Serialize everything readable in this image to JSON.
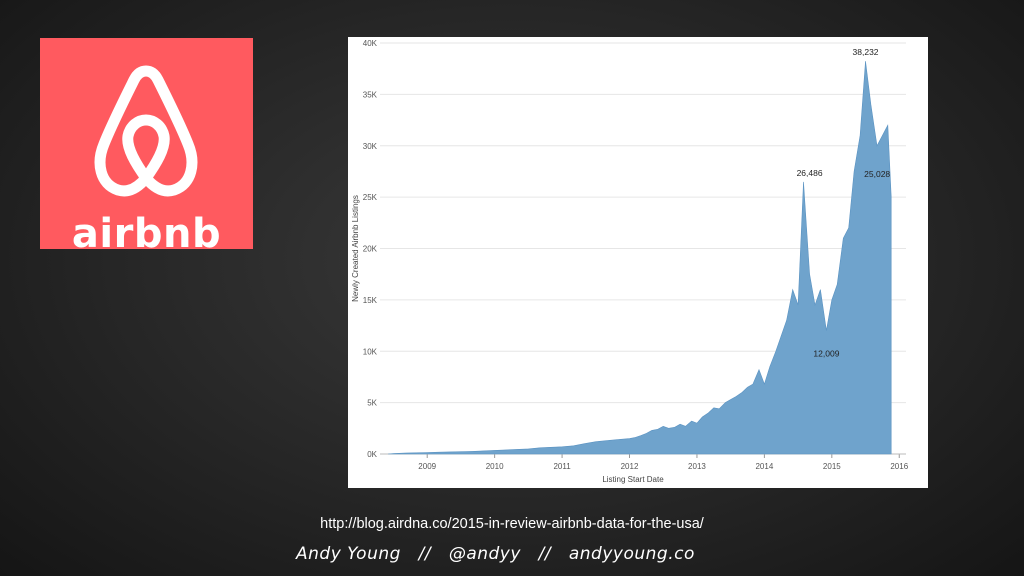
{
  "logo": {
    "brand_text": "airbnb",
    "brand_color": "#ff5a5f"
  },
  "source_url": "http://blog.airdna.co/2015-in-review-airbnb-data-for-the-usa/",
  "credit": {
    "name": "Andy Young",
    "separator": "//",
    "handle": "@andyy",
    "site": "andyyoung.co"
  },
  "chart_data": {
    "type": "area",
    "xlabel": "Listing Start Date",
    "ylabel": "Newly Created Airbnb Listings",
    "xlim": [
      2008.3,
      2016.1
    ],
    "ylim": [
      0,
      40000
    ],
    "x_ticks": [
      2009,
      2010,
      2011,
      2012,
      2013,
      2014,
      2015,
      2016
    ],
    "x_tick_labels": [
      "2009",
      "2010",
      "2011",
      "2012",
      "2013",
      "2014",
      "2015",
      "2016"
    ],
    "y_ticks": [
      0,
      5000,
      10000,
      15000,
      20000,
      25000,
      30000,
      35000,
      40000
    ],
    "y_tick_labels": [
      "0K",
      "5K",
      "10K",
      "15K",
      "20K",
      "25K",
      "30K",
      "35K",
      "40K"
    ],
    "grid": true,
    "fill_color": "#6fa3cc",
    "annotations": [
      {
        "x": 2014.67,
        "y": 26486,
        "label": "26,486"
      },
      {
        "x": 2014.92,
        "y": 12009,
        "label": "12,009"
      },
      {
        "x": 2015.5,
        "y": 38232,
        "label": "38,232"
      },
      {
        "x": 2015.88,
        "y": 25028,
        "label": "25,028"
      }
    ],
    "series": [
      {
        "x": [
          2008.42,
          2008.5,
          2008.67,
          2008.83,
          2009.0,
          2009.17,
          2009.33,
          2009.5,
          2009.67,
          2009.83,
          2010.0,
          2010.17,
          2010.33,
          2010.5,
          2010.67,
          2010.83,
          2011.0,
          2011.17,
          2011.33,
          2011.5,
          2011.67,
          2011.83,
          2012.0,
          2012.08,
          2012.17,
          2012.25,
          2012.33,
          2012.42,
          2012.5,
          2012.58,
          2012.67,
          2012.75,
          2012.83,
          2012.92,
          2013.0,
          2013.08,
          2013.17,
          2013.25,
          2013.33,
          2013.42,
          2013.5,
          2013.58,
          2013.67,
          2013.75,
          2013.83,
          2013.92,
          2014.0,
          2014.08,
          2014.17,
          2014.25,
          2014.33,
          2014.42,
          2014.5,
          2014.58,
          2014.67,
          2014.75,
          2014.83,
          2014.92,
          2015.0,
          2015.08,
          2015.17,
          2015.25,
          2015.33,
          2015.42,
          2015.5,
          2015.58,
          2015.67,
          2015.75,
          2015.83,
          2015.88
        ],
        "values": [
          0,
          50,
          100,
          120,
          150,
          180,
          200,
          220,
          250,
          300,
          350,
          400,
          450,
          500,
          600,
          650,
          700,
          800,
          1000,
          1200,
          1300,
          1400,
          1500,
          1600,
          1800,
          2000,
          2300,
          2400,
          2700,
          2500,
          2600,
          2900,
          2700,
          3200,
          3000,
          3600,
          4000,
          4500,
          4400,
          5000,
          5300,
          5600,
          6000,
          6500,
          6800,
          8200,
          6800,
          8500,
          10000,
          11500,
          13000,
          16000,
          14500,
          26486,
          17500,
          14500,
          16000,
          12009,
          15000,
          16500,
          21000,
          22000,
          27500,
          31000,
          38232,
          34000,
          30000,
          31000,
          32000,
          25028
        ]
      }
    ]
  }
}
